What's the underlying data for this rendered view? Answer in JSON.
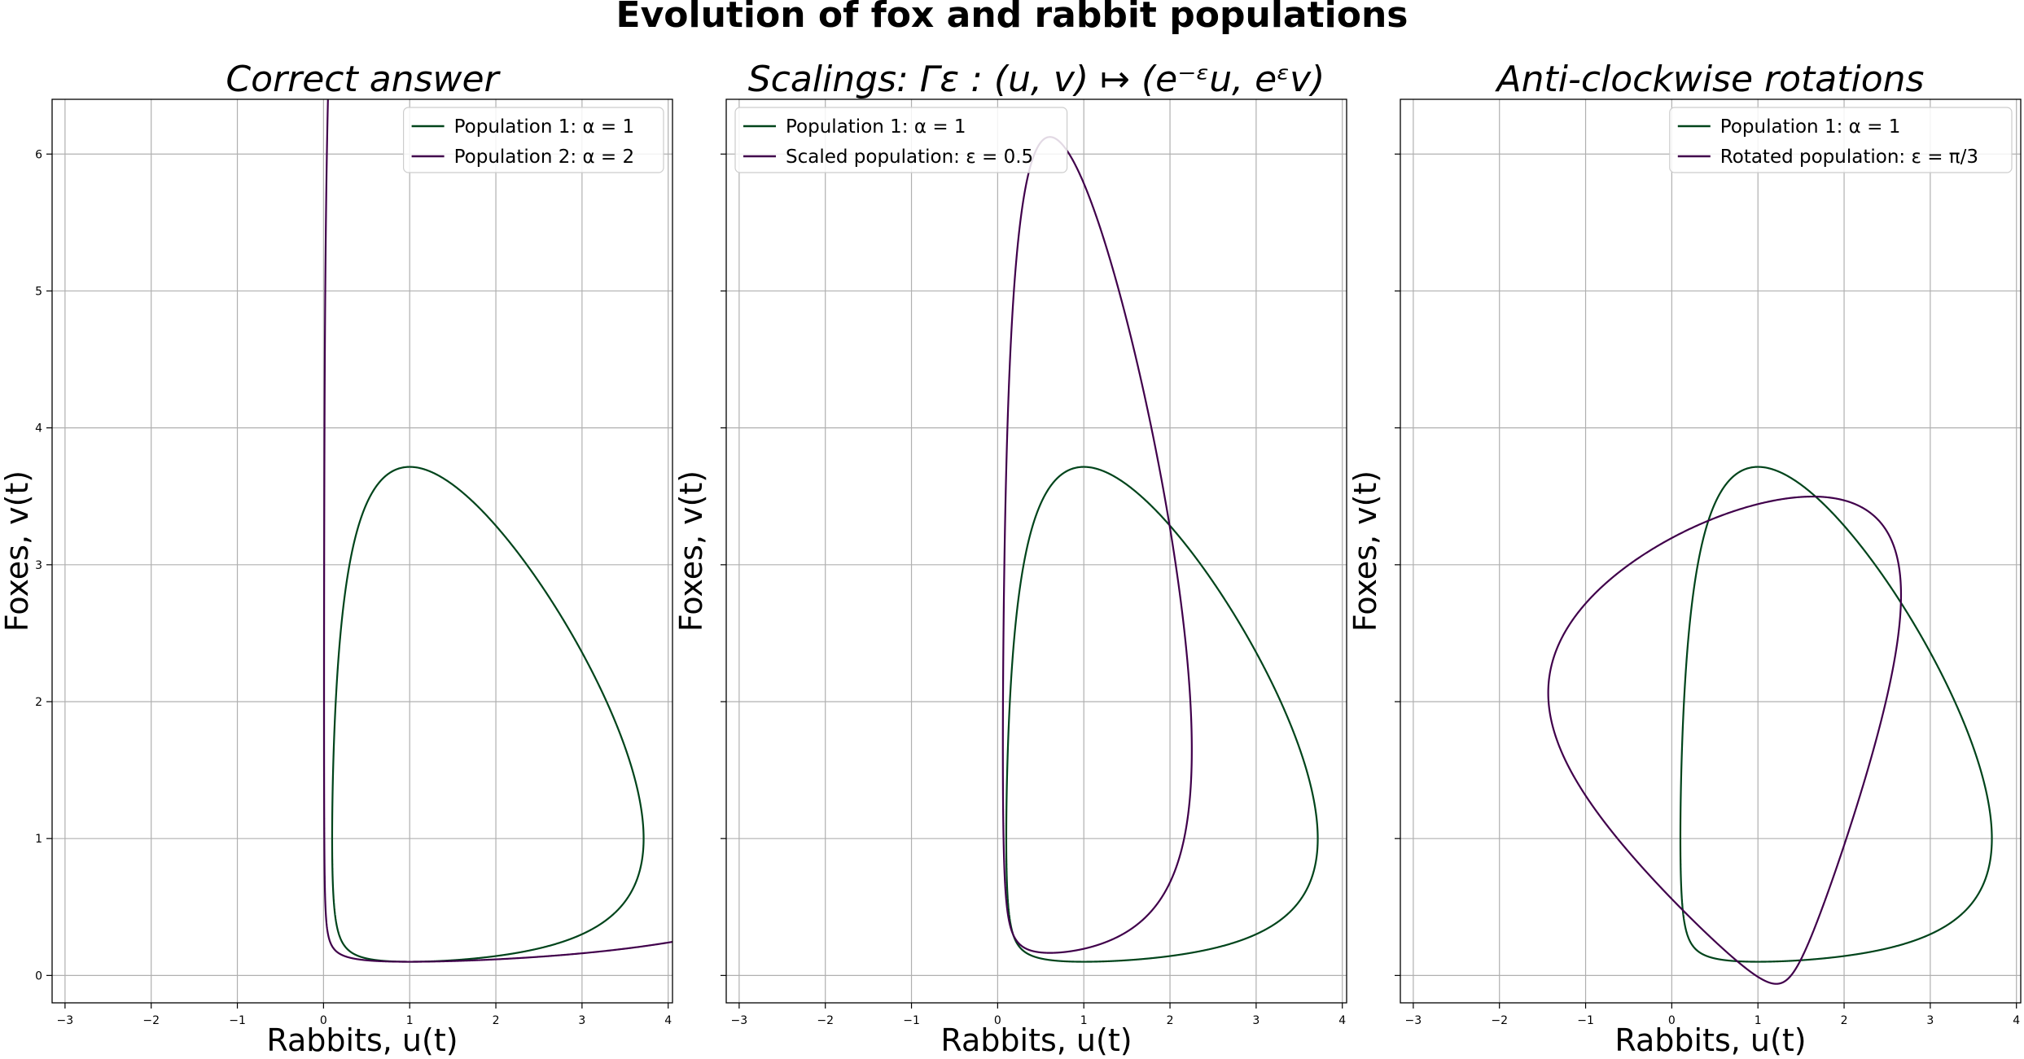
{
  "figure": {
    "title": "Evolution of fox and rabbit populations",
    "colors": {
      "population1": "#00441b",
      "population2": "#40004b"
    }
  },
  "chart_data": [
    {
      "type": "line",
      "title": "Correct answer",
      "xlabel": "Rabbits, u(t)",
      "ylabel": "Foxes, v(t)",
      "xlim": [
        -3.15,
        4.05
      ],
      "ylim": [
        -0.2,
        6.4
      ],
      "xticks": [
        "−3",
        "−2",
        "−1",
        "0",
        "1",
        "2",
        "3",
        "4"
      ],
      "yticks": [
        "0",
        "1",
        "2",
        "3",
        "4",
        "5",
        "6"
      ],
      "grid": true,
      "legend_position": "upper right",
      "series": [
        {
          "name": "Population 1: α = 1",
          "kind": "lotka_volterra",
          "alpha": 1,
          "u0": 1.0,
          "v0": 0.1
        },
        {
          "name": "Population 2: α = 2",
          "kind": "lotka_volterra",
          "alpha": 2,
          "u0": 1.0,
          "v0": 0.1
        }
      ]
    },
    {
      "type": "line",
      "title": "Scalings: Γε : (u, v) ↦ (e⁻ᵋu, eᵋv)",
      "xlabel": "Rabbits, u(t)",
      "ylabel": "Foxes, v(t)",
      "xlim": [
        -3.15,
        4.05
      ],
      "ylim": [
        -0.2,
        6.4
      ],
      "xticks": [
        "−3",
        "−2",
        "−1",
        "0",
        "1",
        "2",
        "3",
        "4"
      ],
      "yticks": [
        "0",
        "1",
        "2",
        "3",
        "4",
        "5",
        "6"
      ],
      "grid": true,
      "legend_position": "upper left",
      "series": [
        {
          "name": "Population 1: α = 1",
          "kind": "lotka_volterra",
          "alpha": 1,
          "u0": 1.0,
          "v0": 0.1
        },
        {
          "name": "Scaled population: ε = 0.5",
          "kind": "scaled",
          "epsilon": 0.5
        }
      ]
    },
    {
      "type": "line",
      "title": "Anti-clockwise rotations",
      "xlabel": "Rabbits, u(t)",
      "ylabel": "Foxes, v(t)",
      "xlim": [
        -3.15,
        4.05
      ],
      "ylim": [
        -0.2,
        6.4
      ],
      "xticks": [
        "−3",
        "−2",
        "−1",
        "0",
        "1",
        "2",
        "3",
        "4"
      ],
      "yticks": [
        "0",
        "1",
        "2",
        "3",
        "4",
        "5",
        "6"
      ],
      "grid": true,
      "legend_position": "upper right",
      "series": [
        {
          "name": "Population 1: α = 1",
          "kind": "lotka_volterra",
          "alpha": 1,
          "u0": 1.0,
          "v0": 0.1
        },
        {
          "name": "Rotated population: ε = π/3",
          "kind": "rotated",
          "epsilon": 1.0471976
        }
      ]
    }
  ]
}
